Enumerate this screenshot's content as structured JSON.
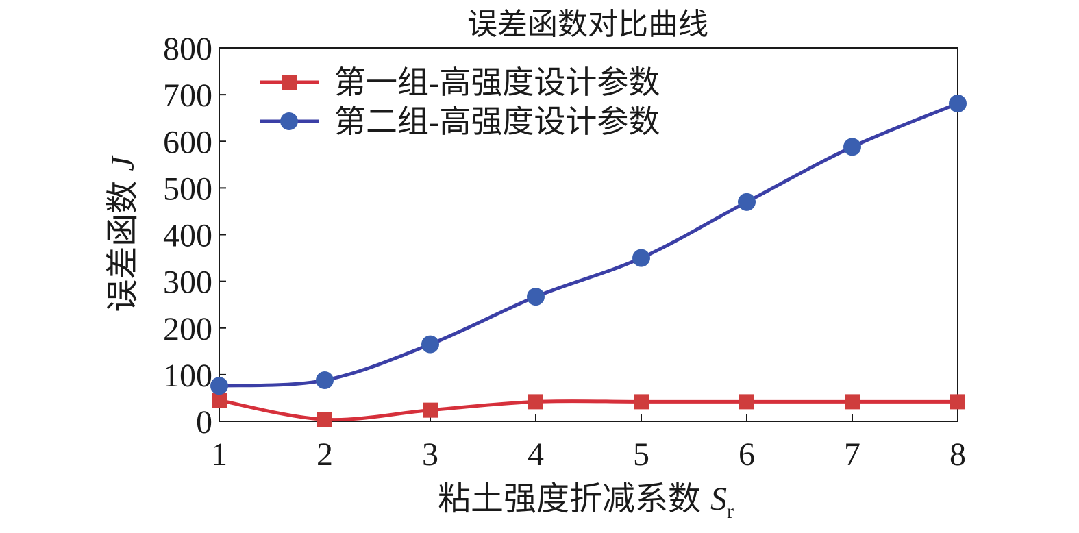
{
  "chart_data": {
    "type": "line",
    "title": "误差函数对比曲线",
    "xlabel": "粘土强度折减系数",
    "xlabel_symbol": "S",
    "xlabel_subscript": "r",
    "ylabel": "误差函数",
    "ylabel_symbol": "J",
    "x": [
      1,
      2,
      3,
      4,
      5,
      6,
      7,
      8
    ],
    "xlim": [
      1,
      8
    ],
    "ylim": [
      0,
      800
    ],
    "xticks": [
      "1",
      "2",
      "3",
      "4",
      "5",
      "6",
      "7",
      "8"
    ],
    "yticks": [
      "0",
      "100",
      "200",
      "300",
      "400",
      "500",
      "600",
      "700",
      "800"
    ],
    "legend_position": "top-left",
    "grid": false,
    "series": [
      {
        "name": "第一组-高强度设计参数",
        "marker": "square",
        "line_color": "#d6303b",
        "marker_color": "#cf3d3d",
        "values": [
          45,
          4,
          24,
          42,
          42,
          42,
          42,
          42
        ]
      },
      {
        "name": "第二组-高强度设计参数",
        "marker": "circle",
        "line_color": "#3b3fa6",
        "marker_color": "#3a5fb0",
        "values": [
          76,
          88,
          165,
          267,
          350,
          470,
          588,
          681
        ]
      }
    ]
  }
}
